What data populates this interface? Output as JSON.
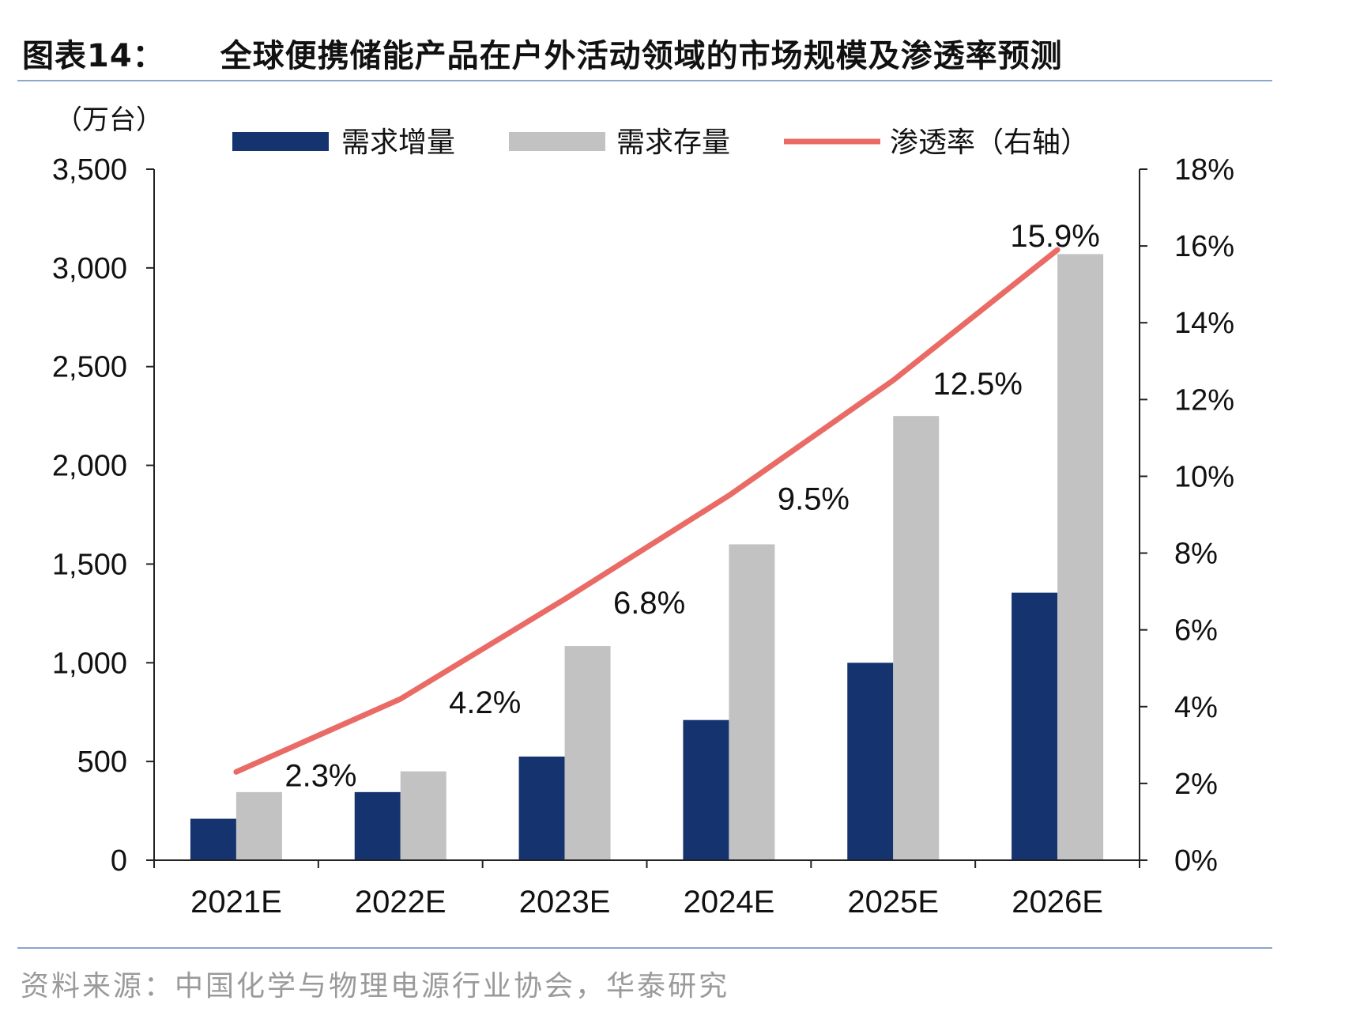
{
  "header": {
    "title_prefix": "图表14：",
    "title": "全球便携储能产品在户外活动领域的市场规模及渗透率预测"
  },
  "footer": {
    "source": "资料来源：中国化学与物理电源行业协会，华泰研究"
  },
  "colors": {
    "increment": "#14336f",
    "stock": "#c2c2c2",
    "rate": "#ea6b66",
    "rule": "#8ea6cf"
  },
  "chart_data": {
    "type": "bar",
    "categories": [
      "2021E",
      "2022E",
      "2023E",
      "2024E",
      "2025E",
      "2026E"
    ],
    "series": [
      {
        "name": "需求增量",
        "kind": "bar",
        "axis": "left",
        "values": [
          210,
          345,
          525,
          710,
          1000,
          1355
        ]
      },
      {
        "name": "需求存量",
        "kind": "bar",
        "axis": "left",
        "values": [
          345,
          450,
          1085,
          1600,
          2250,
          3070
        ]
      },
      {
        "name": "渗透率（右轴）",
        "kind": "line",
        "axis": "right",
        "values": [
          2.3,
          4.2,
          6.8,
          9.5,
          12.5,
          15.9
        ],
        "labels": [
          "2.3%",
          "4.2%",
          "6.8%",
          "9.5%",
          "12.5%",
          "15.9%"
        ]
      }
    ],
    "ylabel": "（万台）",
    "ylim": [
      0,
      3500
    ],
    "yticks": [
      0,
      500,
      1000,
      1500,
      2000,
      2500,
      3000,
      3500
    ],
    "ytick_labels": [
      "0",
      "500",
      "1,000",
      "1,500",
      "2,000",
      "2,500",
      "3,000",
      "3,500"
    ],
    "y2lim": [
      0,
      18
    ],
    "y2ticks": [
      0,
      2,
      4,
      6,
      8,
      10,
      12,
      14,
      16,
      18
    ],
    "y2tick_labels": [
      "0%",
      "2%",
      "4%",
      "6%",
      "8%",
      "10%",
      "12%",
      "14%",
      "16%",
      "18%"
    ],
    "legend_position": "top",
    "grid": false
  }
}
